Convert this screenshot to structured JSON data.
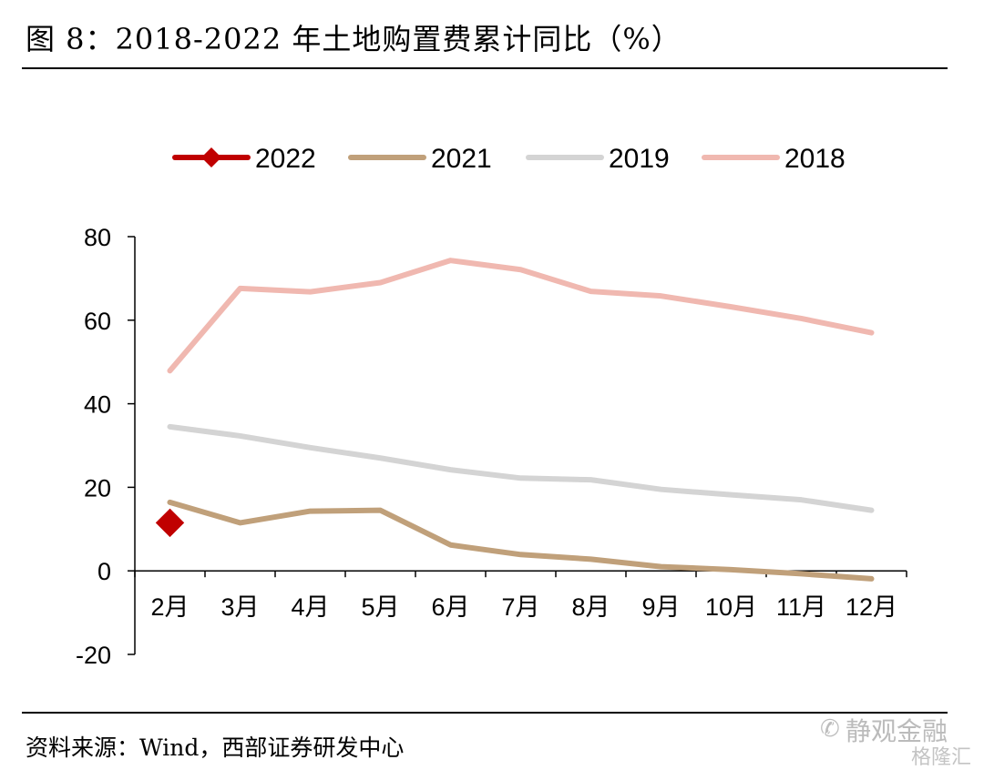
{
  "figure_title": "图 8：2018-2022 年土地购置费累计同比（%）",
  "source": "资料来源：Wind，西部证券研发中心",
  "watermark": {
    "primary": "静观金融",
    "secondary": "格隆汇"
  },
  "chart_data": {
    "type": "line",
    "categories": [
      "2月",
      "3月",
      "4月",
      "5月",
      "6月",
      "7月",
      "8月",
      "9月",
      "10月",
      "11月",
      "12月"
    ],
    "ylim": [
      -20,
      80
    ],
    "yticks": [
      "80",
      "60",
      "40",
      "20",
      "0",
      "-20"
    ],
    "ytick_values": [
      80,
      60,
      40,
      20,
      0,
      -20
    ],
    "grid": false,
    "legend_position": "top",
    "series": [
      {
        "name": "2022",
        "color": "#c00000",
        "marker": "diamond",
        "values": [
          11.5,
          null,
          null,
          null,
          null,
          null,
          null,
          null,
          null,
          null,
          null
        ]
      },
      {
        "name": "2021",
        "color": "#c0a07a",
        "values": [
          16.4,
          11.5,
          14.3,
          14.5,
          6.2,
          3.9,
          2.8,
          1.0,
          0.3,
          -0.7,
          -1.9
        ]
      },
      {
        "name": "2019",
        "color": "#d4d4d4",
        "values": [
          34.5,
          32.3,
          29.5,
          27.0,
          24.2,
          22.2,
          21.8,
          19.5,
          18.2,
          17.0,
          14.5
        ]
      },
      {
        "name": "2018",
        "color": "#f0b8b0",
        "values": [
          47.9,
          67.6,
          66.8,
          69.0,
          74.3,
          72.1,
          66.9,
          65.8,
          63.2,
          60.4,
          57.0
        ]
      }
    ]
  }
}
